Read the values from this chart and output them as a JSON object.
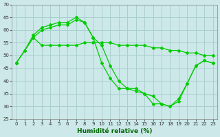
{
  "xlabel": "Humidité relative (%)",
  "background_color": "#cce8e8",
  "grid_color": "#aacfcf",
  "line_color": "#00cc00",
  "xlim": [
    -0.5,
    23.5
  ],
  "ylim": [
    25,
    70
  ],
  "yticks": [
    25,
    30,
    35,
    40,
    45,
    50,
    55,
    60,
    65,
    70
  ],
  "xticks": [
    0,
    1,
    2,
    3,
    4,
    5,
    6,
    7,
    8,
    9,
    10,
    11,
    12,
    13,
    14,
    15,
    16,
    17,
    18,
    19,
    20,
    21,
    22,
    23
  ],
  "series1": [
    47,
    52,
    57,
    60,
    61,
    62,
    62,
    64,
    63,
    57,
    54,
    46,
    40,
    37,
    37,
    35,
    34,
    31,
    30,
    33,
    39,
    46,
    48,
    47
  ],
  "series2_x": [
    0,
    2,
    3,
    4,
    5,
    6,
    7,
    8,
    9,
    10,
    11,
    12,
    13,
    14,
    15,
    16,
    17,
    18,
    19,
    20,
    21,
    22,
    23
  ],
  "series2_y": [
    47,
    57,
    54,
    54,
    54,
    54,
    54,
    55,
    55,
    55,
    55,
    54,
    54,
    54,
    54,
    53,
    53,
    52,
    52,
    51,
    51,
    50,
    50
  ],
  "series3_x": [
    0,
    1,
    2,
    3,
    4,
    5,
    6,
    7,
    8,
    9,
    10,
    11,
    12,
    13,
    14,
    15,
    16,
    17,
    18,
    19,
    20,
    21,
    22,
    23
  ],
  "series3_y": [
    47,
    52,
    58,
    61,
    62,
    63,
    63,
    65,
    63,
    57,
    47,
    41,
    37,
    37,
    36,
    35,
    31,
    31,
    30,
    32,
    39,
    46,
    48,
    47
  ]
}
